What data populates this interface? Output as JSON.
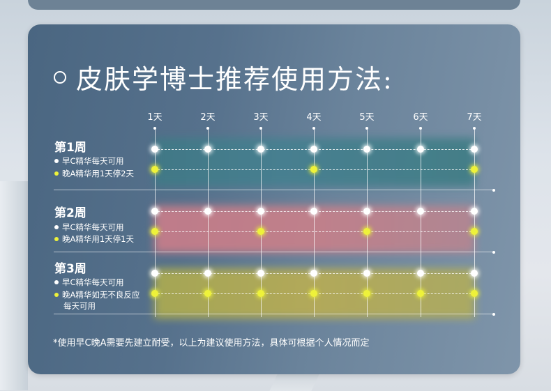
{
  "title": "皮肤学博士推荐使用方法:",
  "days": [
    "1天",
    "2天",
    "3天",
    "4天",
    "5天",
    "6天",
    "7天"
  ],
  "weeks": [
    {
      "label": "第1周",
      "morning": "早C精华每天可用",
      "night": "晚A精华用1天停2天",
      "morning_days": [
        1,
        2,
        3,
        4,
        5,
        6,
        7
      ],
      "night_days": [
        1,
        4,
        7
      ],
      "band_color": "#3f7a86"
    },
    {
      "label": "第2周",
      "morning": "早C精华每天可用",
      "night": "晚A精华用1天停1天",
      "morning_days": [
        1,
        2,
        3,
        4,
        5,
        6,
        7
      ],
      "night_days": [
        1,
        3,
        5,
        7
      ],
      "band_color": "#d27f8a"
    },
    {
      "label": "第3周",
      "morning": "早C精华每天可用",
      "night": "晚A精华如无不良反应",
      "night_cont": "每天可用",
      "morning_days": [
        1,
        2,
        3,
        4,
        5,
        6,
        7
      ],
      "night_days": [
        1,
        2,
        3,
        4,
        5,
        6,
        7
      ],
      "band_color": "#b3b04c"
    }
  ],
  "footnote": "*使用早C晚A需要先建立耐受，以上为建议使用方法，具体可根据个人情况而定",
  "colors": {
    "card": "#56718c",
    "morning_dot": "#ffffff",
    "night_dot": "#eef23a"
  }
}
